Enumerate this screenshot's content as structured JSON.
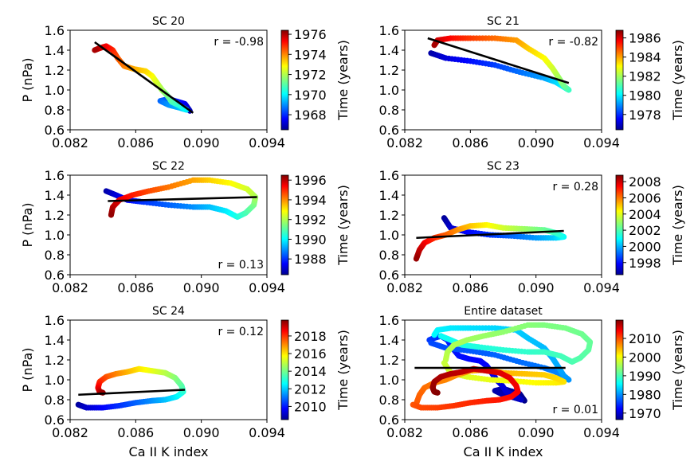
{
  "figure": {
    "xlabel": "Ca II K index",
    "ylabel": "P (nPa)",
    "colorbar_label": "Time (years)"
  },
  "chart_data": [
    {
      "type": "scatter",
      "title": "SC 20",
      "correlation": "r = -0.98",
      "corr_pos": "top-right",
      "xlabel": "",
      "ylabel": "P (nPa)",
      "xlim": [
        0.082,
        0.094
      ],
      "ylim": [
        0.6,
        1.6
      ],
      "xticks": [
        "0.082",
        "0.086",
        "0.090",
        "0.094"
      ],
      "yticks": [
        "0.6",
        "0.8",
        "1.0",
        "1.2",
        "1.4",
        "1.6"
      ],
      "colorbar": {
        "range": [
          1966.5,
          1976.4
        ],
        "ticks": [
          1968,
          1970,
          1972,
          1974,
          1976
        ]
      },
      "fit": {
        "x": [
          0.0835,
          0.0895
        ],
        "y": [
          1.48,
          0.77
        ]
      },
      "points": [
        [
          0.0893,
          0.79
        ],
        [
          0.089,
          0.86
        ],
        [
          0.0886,
          0.88
        ],
        [
          0.088,
          0.91
        ],
        [
          0.0875,
          0.89
        ],
        [
          0.088,
          0.85
        ],
        [
          0.0887,
          0.82
        ],
        [
          0.0891,
          0.8
        ],
        [
          0.0887,
          0.84
        ],
        [
          0.0882,
          0.88
        ],
        [
          0.0879,
          0.95
        ],
        [
          0.0876,
          1.0
        ],
        [
          0.0873,
          1.07
        ],
        [
          0.087,
          1.14
        ],
        [
          0.0866,
          1.19
        ],
        [
          0.0859,
          1.21
        ],
        [
          0.0853,
          1.24
        ],
        [
          0.0849,
          1.32
        ],
        [
          0.0846,
          1.4
        ],
        [
          0.0842,
          1.44
        ],
        [
          0.0838,
          1.42
        ],
        [
          0.0835,
          1.4
        ]
      ],
      "time_range": [
        1967.0,
        1976.0
      ]
    },
    {
      "type": "scatter",
      "title": "SC 21",
      "correlation": "r = -0.82",
      "corr_pos": "top-right",
      "xlabel": "",
      "ylabel": "",
      "xlim": [
        0.082,
        0.094
      ],
      "ylim": [
        0.6,
        1.6
      ],
      "xticks": [
        "0.082",
        "0.086",
        "0.090",
        "0.094"
      ],
      "yticks": [
        "0.6",
        "0.8",
        "1.0",
        "1.2",
        "1.4",
        "1.6"
      ],
      "colorbar": {
        "range": [
          1976.4,
          1986.8
        ],
        "ticks": [
          1978,
          1980,
          1982,
          1984,
          1986
        ]
      },
      "fit": {
        "x": [
          0.0834,
          0.092
        ],
        "y": [
          1.52,
          1.07
        ]
      },
      "points": [
        [
          0.0836,
          1.37
        ],
        [
          0.0845,
          1.32
        ],
        [
          0.086,
          1.29
        ],
        [
          0.0875,
          1.25
        ],
        [
          0.089,
          1.18
        ],
        [
          0.0905,
          1.12
        ],
        [
          0.0912,
          1.08
        ],
        [
          0.0918,
          1.02
        ],
        [
          0.092,
          1.0
        ],
        [
          0.0917,
          1.04
        ],
        [
          0.0914,
          1.12
        ],
        [
          0.091,
          1.22
        ],
        [
          0.0905,
          1.32
        ],
        [
          0.0895,
          1.42
        ],
        [
          0.0888,
          1.5
        ],
        [
          0.0875,
          1.52
        ],
        [
          0.086,
          1.52
        ],
        [
          0.0848,
          1.52
        ],
        [
          0.084,
          1.5
        ],
        [
          0.0838,
          1.45
        ]
      ],
      "time_range": [
        1976.8,
        1986.4
      ]
    },
    {
      "type": "scatter",
      "title": "SC 22",
      "correlation": "r = 0.13",
      "corr_pos": "bottom-right",
      "xlabel": "",
      "ylabel": "P (nPa)",
      "xlim": [
        0.082,
        0.094
      ],
      "ylim": [
        0.6,
        1.6
      ],
      "xticks": [
        "0.082",
        "0.086",
        "0.090",
        "0.094"
      ],
      "yticks": [
        "0.6",
        "0.8",
        "1.0",
        "1.2",
        "1.4",
        "1.6"
      ],
      "colorbar": {
        "range": [
          1986.4,
          1996.5
        ],
        "ticks": [
          1988,
          1990,
          1992,
          1994,
          1996
        ]
      },
      "fit": {
        "x": [
          0.0843,
          0.0934
        ],
        "y": [
          1.34,
          1.38
        ]
      },
      "points": [
        [
          0.0842,
          1.44
        ],
        [
          0.0848,
          1.4
        ],
        [
          0.0855,
          1.35
        ],
        [
          0.0865,
          1.33
        ],
        [
          0.088,
          1.3
        ],
        [
          0.0895,
          1.28
        ],
        [
          0.0905,
          1.28
        ],
        [
          0.0915,
          1.24
        ],
        [
          0.0922,
          1.18
        ],
        [
          0.0927,
          1.22
        ],
        [
          0.0932,
          1.3
        ],
        [
          0.0933,
          1.38
        ],
        [
          0.0928,
          1.46
        ],
        [
          0.0918,
          1.52
        ],
        [
          0.0905,
          1.55
        ],
        [
          0.0895,
          1.55
        ],
        [
          0.088,
          1.48
        ],
        [
          0.0868,
          1.44
        ],
        [
          0.0858,
          1.4
        ],
        [
          0.085,
          1.35
        ],
        [
          0.0846,
          1.28
        ],
        [
          0.0845,
          1.2
        ]
      ],
      "time_range": [
        1986.8,
        1996.3
      ]
    },
    {
      "type": "scatter",
      "title": "SC 23",
      "correlation": "r = 0.28",
      "corr_pos": "top-right",
      "xlabel": "",
      "ylabel": "",
      "xlim": [
        0.082,
        0.094
      ],
      "ylim": [
        0.6,
        1.6
      ],
      "xticks": [
        "0.082",
        "0.086",
        "0.090",
        "0.094"
      ],
      "yticks": [
        "0.6",
        "0.8",
        "1.0",
        "1.2",
        "1.4",
        "1.6"
      ],
      "colorbar": {
        "range": [
          1996.5,
          2008.8
        ],
        "ticks": [
          1998,
          2000,
          2002,
          2004,
          2006,
          2008
        ]
      },
      "fit": {
        "x": [
          0.0827,
          0.0917
        ],
        "y": [
          0.97,
          1.04
        ]
      },
      "points": [
        [
          0.0844,
          1.17
        ],
        [
          0.0848,
          1.07
        ],
        [
          0.0858,
          1.03
        ],
        [
          0.0872,
          1.0
        ],
        [
          0.0885,
          0.99
        ],
        [
          0.09,
          0.97
        ],
        [
          0.0912,
          0.97
        ],
        [
          0.0917,
          0.98
        ],
        [
          0.0912,
          1.02
        ],
        [
          0.0905,
          1.05
        ],
        [
          0.0893,
          1.06
        ],
        [
          0.088,
          1.07
        ],
        [
          0.087,
          1.1
        ],
        [
          0.086,
          1.09
        ],
        [
          0.0852,
          1.05
        ],
        [
          0.0845,
          1.0
        ],
        [
          0.0838,
          0.97
        ],
        [
          0.0832,
          0.92
        ],
        [
          0.0829,
          0.85
        ],
        [
          0.0827,
          0.76
        ]
      ],
      "time_range": [
        1996.8,
        2008.5
      ]
    },
    {
      "type": "scatter",
      "title": "SC 24",
      "correlation": "r = 0.12",
      "corr_pos": "top-right",
      "xlabel": "Ca II K index",
      "ylabel": "P (nPa)",
      "xlim": [
        0.082,
        0.094
      ],
      "ylim": [
        0.6,
        1.6
      ],
      "xticks": [
        "0.082",
        "0.086",
        "0.090",
        "0.094"
      ],
      "yticks": [
        "0.6",
        "0.8",
        "1.0",
        "1.2",
        "1.4",
        "1.6"
      ],
      "colorbar": {
        "range": [
          2008.5,
          2019.8
        ],
        "ticks": [
          2010,
          2012,
          2014,
          2016,
          2018
        ]
      },
      "fit": {
        "x": [
          0.0825,
          0.089
        ],
        "y": [
          0.85,
          0.9
        ]
      },
      "points": [
        [
          0.0825,
          0.75
        ],
        [
          0.083,
          0.72
        ],
        [
          0.084,
          0.72
        ],
        [
          0.085,
          0.74
        ],
        [
          0.086,
          0.77
        ],
        [
          0.087,
          0.79
        ],
        [
          0.0878,
          0.8
        ],
        [
          0.0885,
          0.83
        ],
        [
          0.0889,
          0.88
        ],
        [
          0.0888,
          0.94
        ],
        [
          0.0884,
          1.02
        ],
        [
          0.0878,
          1.07
        ],
        [
          0.087,
          1.09
        ],
        [
          0.0862,
          1.11
        ],
        [
          0.0855,
          1.08
        ],
        [
          0.0848,
          1.06
        ],
        [
          0.0842,
          1.03
        ],
        [
          0.0838,
          0.98
        ],
        [
          0.0837,
          0.92
        ],
        [
          0.0838,
          0.88
        ],
        [
          0.084,
          0.87
        ]
      ],
      "time_range": [
        2008.8,
        2019.5
      ]
    },
    {
      "type": "scatter",
      "title": "Entire dataset",
      "correlation": "r = 0.01",
      "corr_pos": "bottom-right",
      "xlabel": "Ca II K index",
      "ylabel": "",
      "xlim": [
        0.082,
        0.094
      ],
      "ylim": [
        0.6,
        1.6
      ],
      "xticks": [
        "0.082",
        "0.086",
        "0.090",
        "0.094"
      ],
      "yticks": [
        "0.6",
        "0.8",
        "1.0",
        "1.2",
        "1.4",
        "1.6"
      ],
      "colorbar": {
        "range": [
          1966.5,
          2019.8
        ],
        "ticks": [
          1970,
          1980,
          1990,
          2000,
          2010
        ]
      },
      "fit": {
        "x": [
          0.0826,
          0.0918
        ],
        "y": [
          1.12,
          1.12
        ]
      },
      "composite": true
    }
  ]
}
